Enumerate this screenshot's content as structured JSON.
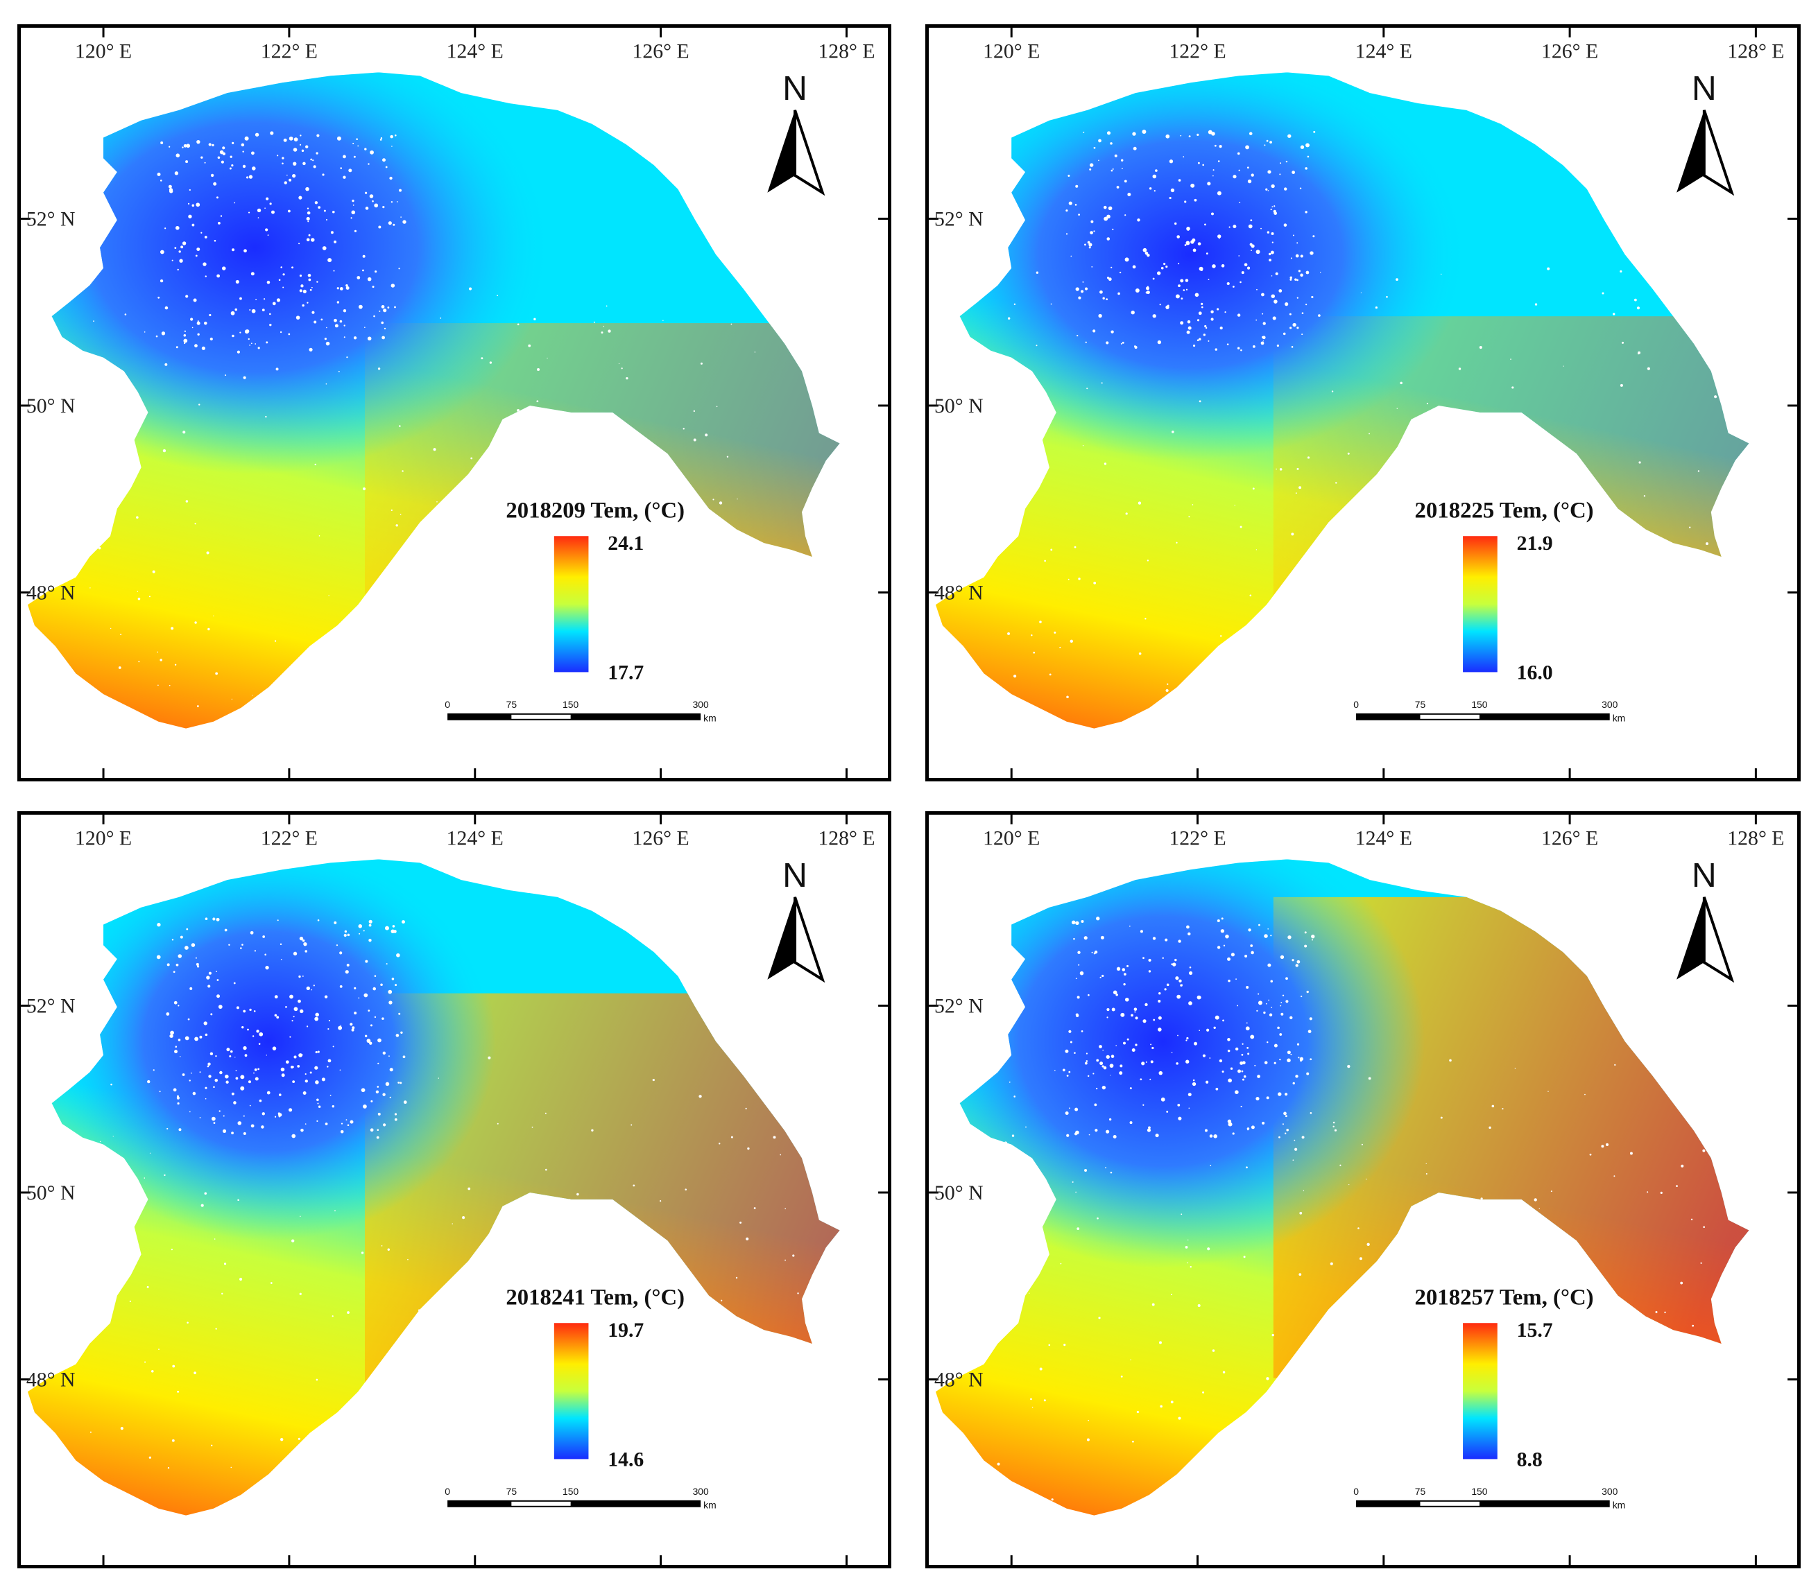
{
  "longitude_labels": [
    "120° E",
    "122° E",
    "124° E",
    "126° E",
    "128° E"
  ],
  "latitude_labels": [
    "52° N",
    "50° N",
    "48° N"
  ],
  "north_label": "N",
  "scale_bar": {
    "ticks": [
      "0",
      "75",
      "150",
      "300"
    ],
    "unit": "km"
  },
  "colors": {
    "low": "#1a2cff",
    "mid_low": "#00e5ff",
    "mid": "#c8ff3c",
    "mid_high": "#ffee00",
    "high": "#ff2a10"
  },
  "panels": [
    {
      "date_code": "2018209",
      "legend_title": "2018209 Tem, (°C)",
      "max_label": "24.1",
      "min_label": "17.7",
      "max": 24.1,
      "min": 17.7
    },
    {
      "date_code": "2018225",
      "legend_title": "2018225 Tem, (°C)",
      "max_label": "21.9",
      "min_label": "16.0",
      "max": 21.9,
      "min": 16.0
    },
    {
      "date_code": "2018241",
      "legend_title": "2018241 Tem, (°C)",
      "max_label": "19.7",
      "min_label": "14.6",
      "max": 19.7,
      "min": 14.6
    },
    {
      "date_code": "2018257",
      "legend_title": "2018257 Tem, (°C)",
      "max_label": "15.7",
      "min_label": "8.8",
      "max": 15.7,
      "min": 8.8
    }
  ]
}
